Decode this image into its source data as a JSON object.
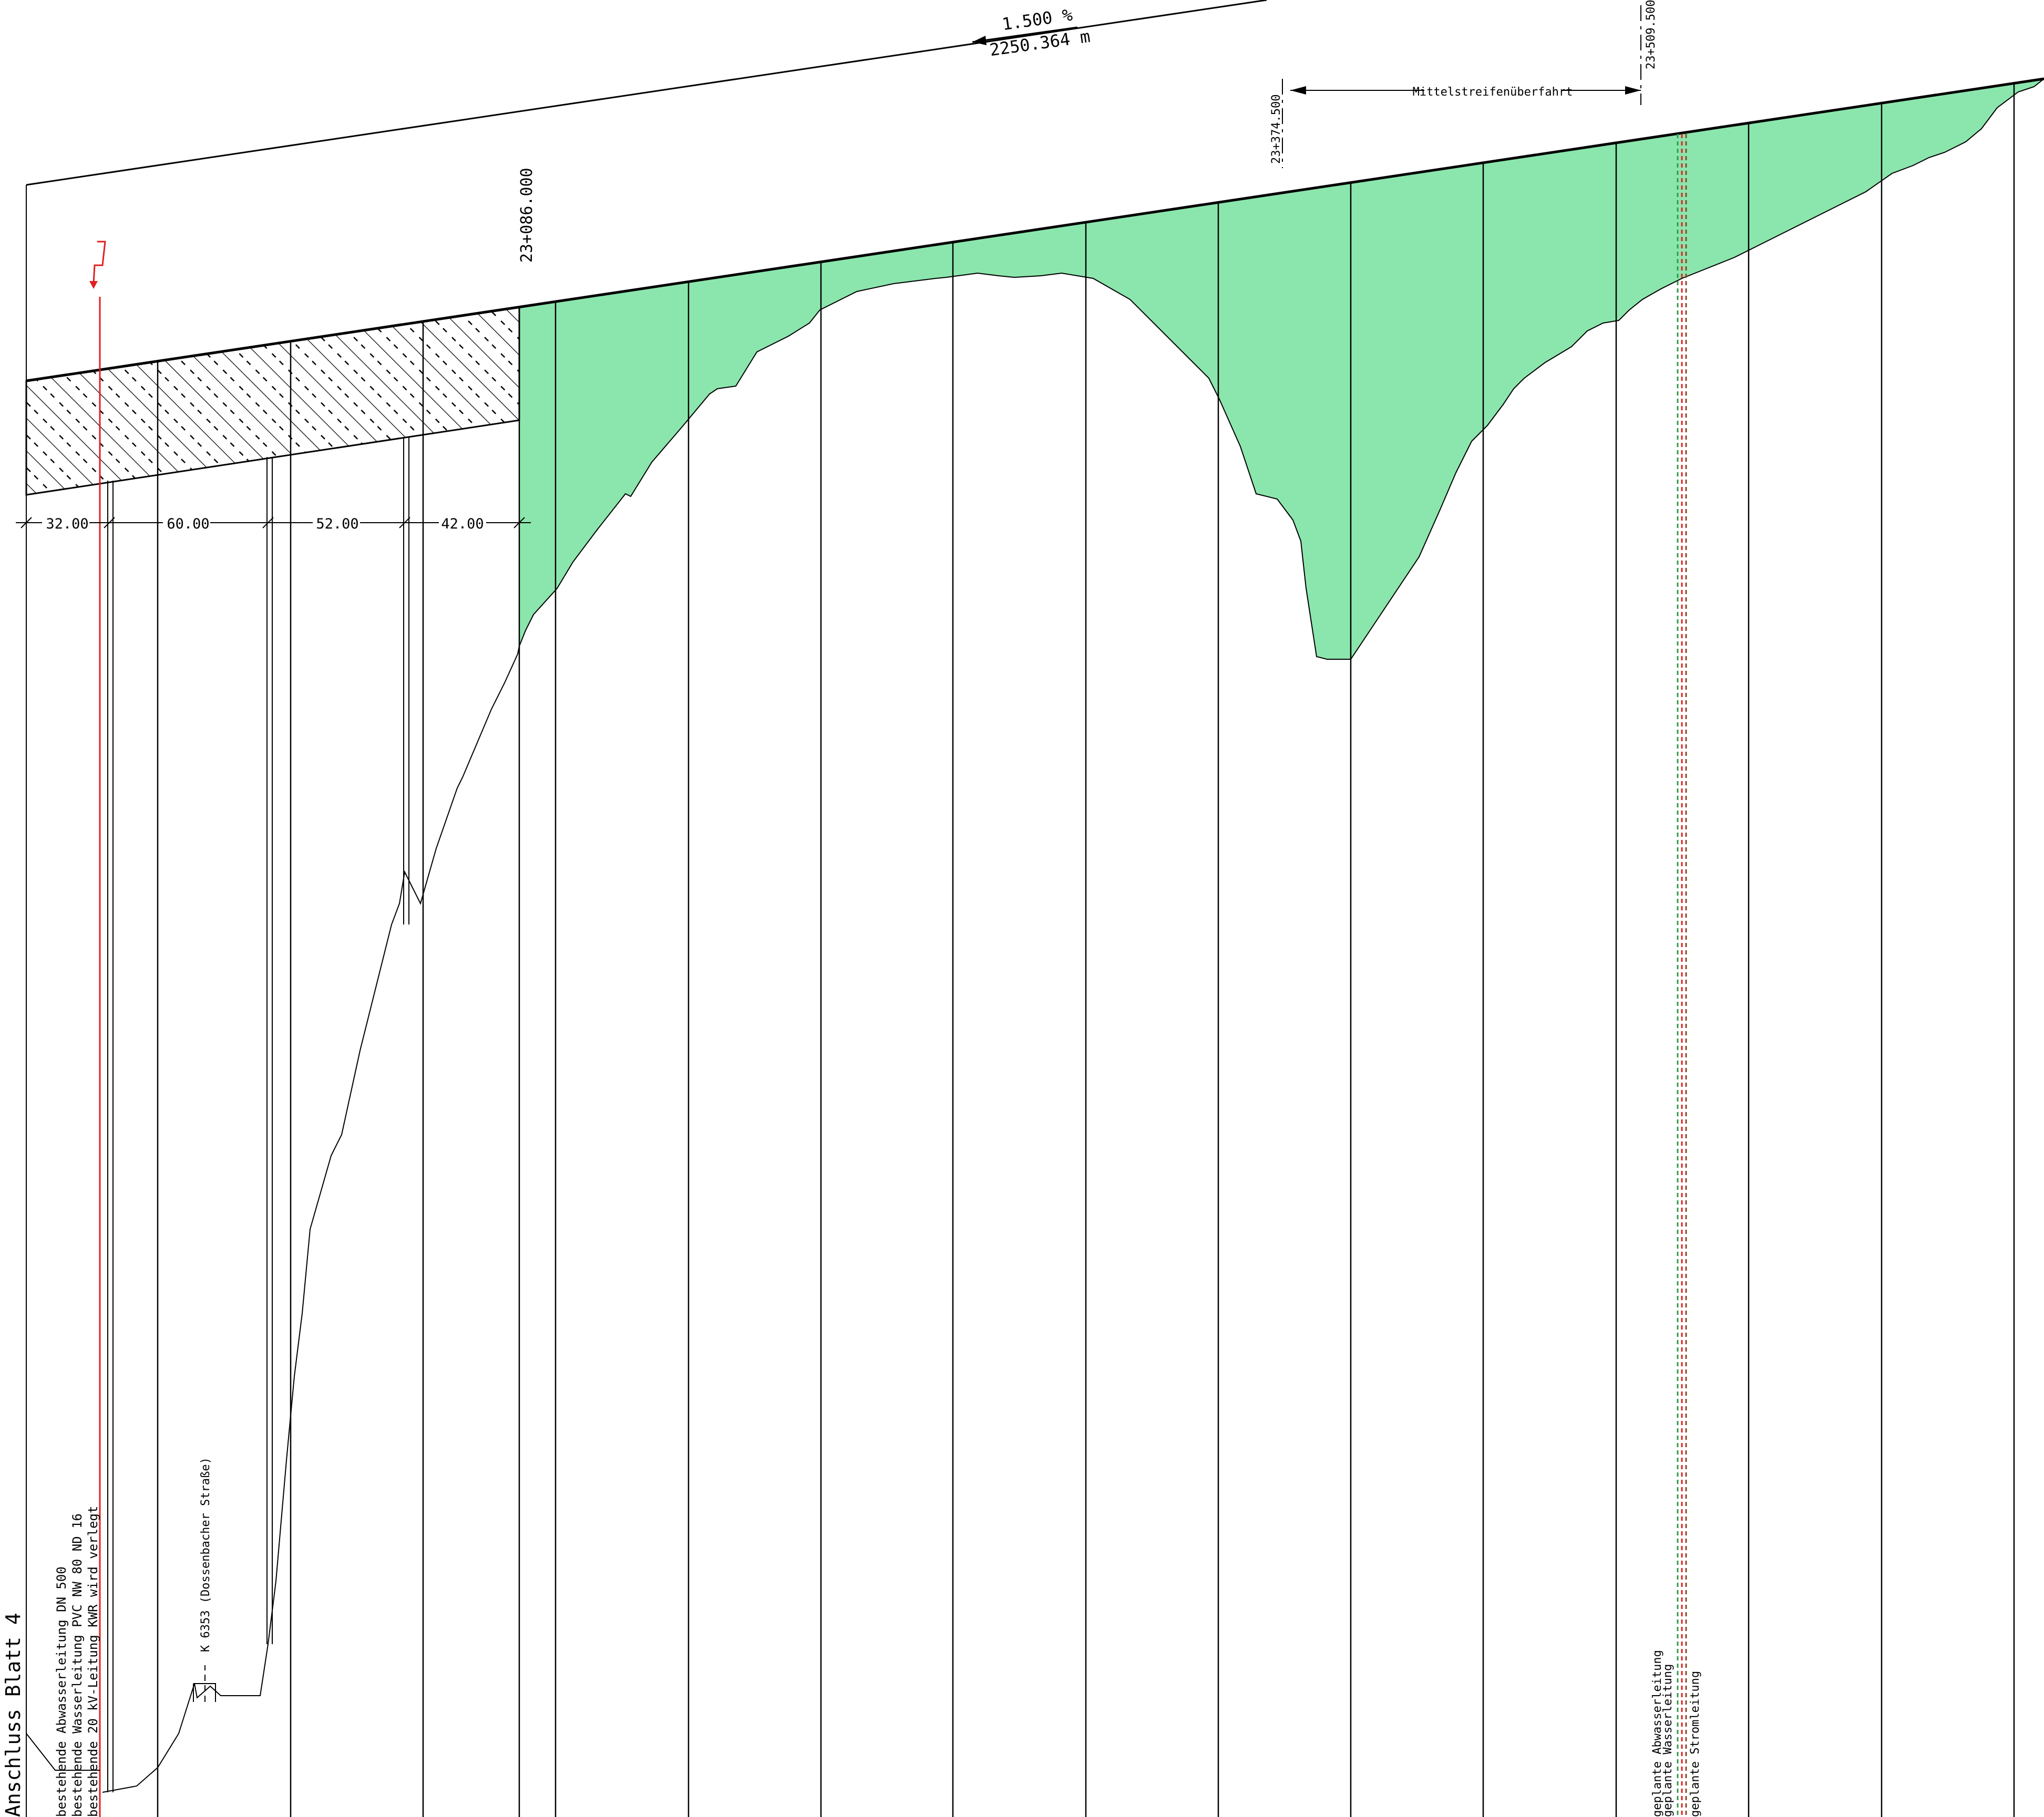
{
  "gradient": {
    "percent": "1.500 %",
    "length": "2250.364 m"
  },
  "stations": {
    "start_fill": "23+086.000",
    "median_start": "23+374.500",
    "median_end": "23+509.500"
  },
  "median_crossing_label": "Mittelstreifenüberfahrt",
  "spacings": [
    "32.00",
    "60.00",
    "52.00",
    "42.00"
  ],
  "sheet_label": "Anschluss Blatt 4",
  "existing_utilities": [
    "bestehende Abwasserleitung DN 500",
    "bestehende Wasserleitung PVC NW 80 ND 16",
    "bestehende 20 kV-Leitung KWR wird verlegt"
  ],
  "road_label": "K 6353 (Dossenbacher Straße)",
  "planned_utilities": [
    "geplante Abwasserleitung",
    "geplante Wasserleitung",
    "geplante Stromleitung"
  ],
  "colors": {
    "fill": "#8be6ad",
    "red": "#e02020",
    "green": "#2e9e48",
    "brown": "#8b4a2b"
  }
}
